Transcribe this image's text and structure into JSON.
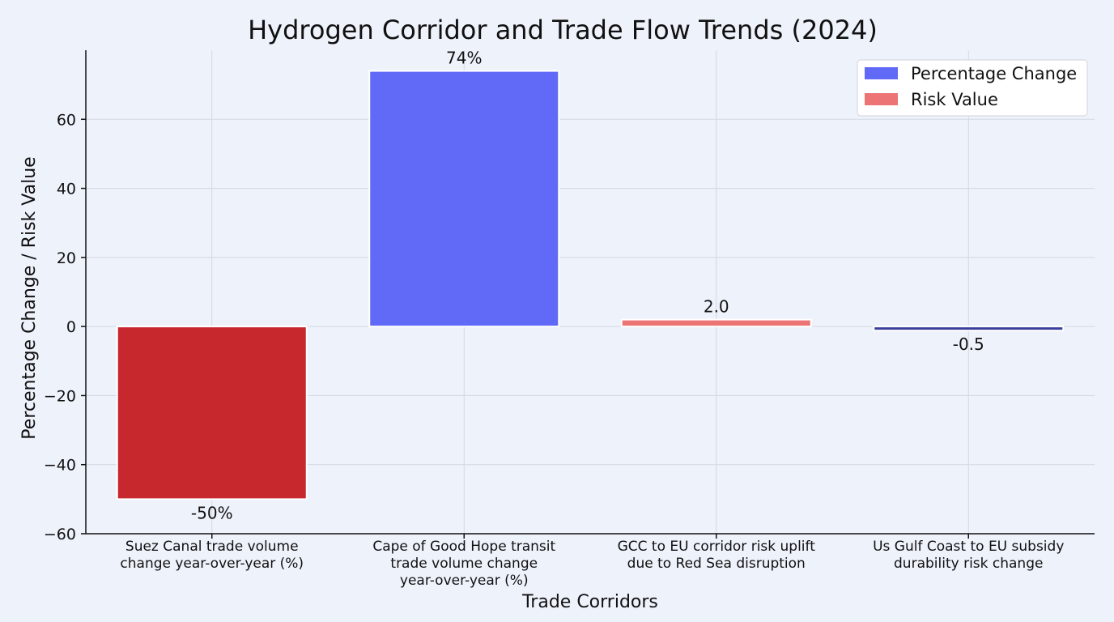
{
  "chart_data": {
    "type": "bar",
    "title": "Hydrogen Corridor and Trade Flow Trends (2024)",
    "xlabel": "Trade Corridors",
    "ylabel": "Percentage Change / Risk Value",
    "ylim": [
      -60,
      80
    ],
    "yticks": [
      -60,
      -40,
      -20,
      0,
      20,
      40,
      60
    ],
    "ytick_labels": [
      "−60",
      "−40",
      "−20",
      "0",
      "20",
      "40",
      "60"
    ],
    "grid": true,
    "legend_position": "top-right",
    "legend": [
      {
        "label": "Percentage Change",
        "color": "#6169f7"
      },
      {
        "label": "Risk Value",
        "color": "#ec7474"
      }
    ],
    "categories": [
      [
        "Suez Canal trade volume",
        "change year-over-year (%)"
      ],
      [
        "Cape of Good Hope transit",
        "trade volume change",
        "year-over-year (%)"
      ],
      [
        "GCC to EU corridor risk uplift",
        "due to Red Sea disruption"
      ],
      [
        "Us Gulf Coast to EU subsidy",
        "durability risk change"
      ]
    ],
    "values": [
      -50,
      74,
      2.0,
      -0.5
    ],
    "data_labels": [
      "-50%",
      "74%",
      "2.0",
      "-0.5"
    ],
    "bar_colors": [
      "#c6282e",
      "#6169f7",
      "#ec7474",
      "#3a3f9e"
    ]
  }
}
